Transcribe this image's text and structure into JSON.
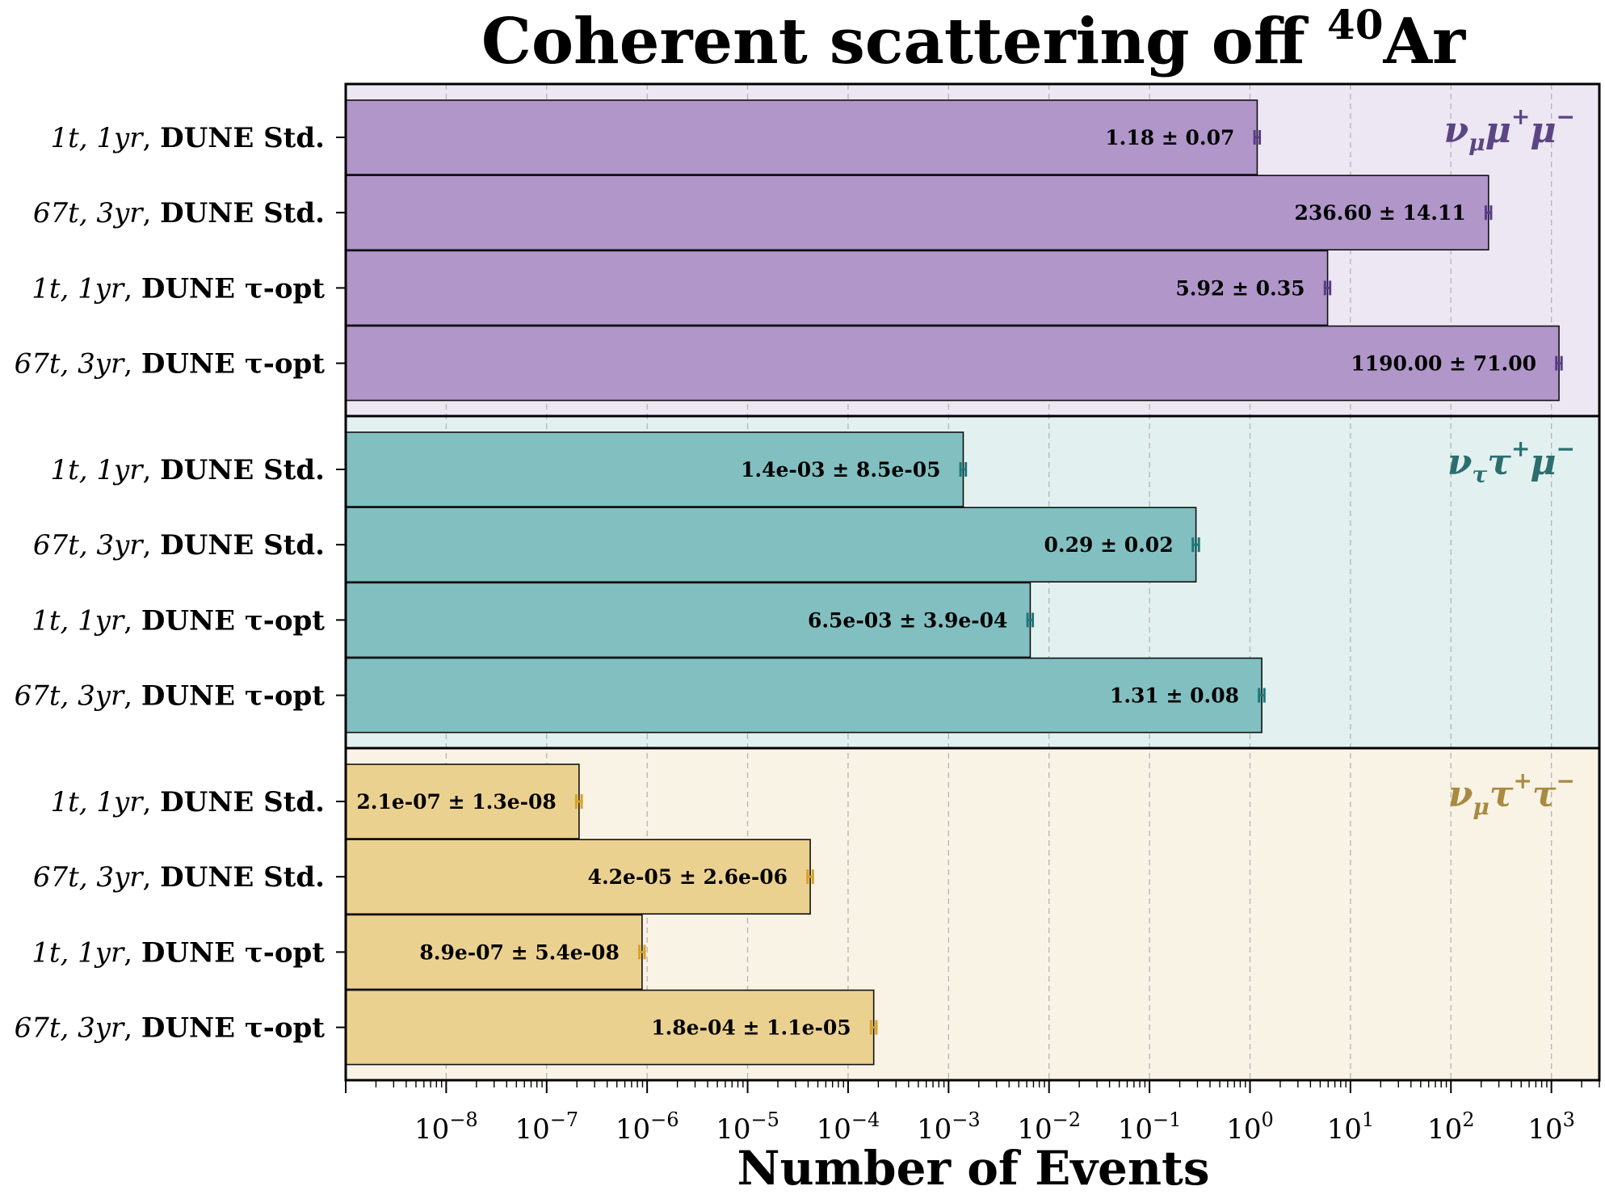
{
  "chart_data": {
    "type": "bar",
    "orientation": "horizontal",
    "title": "Coherent scattering off ⁴⁰Ar",
    "title_main": "Coherent scattering off ",
    "title_sup": "40",
    "title_tail": "Ar",
    "xlabel": "Number of Events",
    "xscale": "log",
    "xlim": [
      1e-09,
      3000
    ],
    "x_ticks": [
      1e-08,
      1e-07,
      1e-06,
      1e-05,
      0.0001,
      0.001,
      0.01,
      0.1,
      1,
      10,
      100,
      1000
    ],
    "x_tick_labels": [
      {
        "base": "10",
        "exp": "−8"
      },
      {
        "base": "10",
        "exp": "−7"
      },
      {
        "base": "10",
        "exp": "−6"
      },
      {
        "base": "10",
        "exp": "−5"
      },
      {
        "base": "10",
        "exp": "−4"
      },
      {
        "base": "10",
        "exp": "−3"
      },
      {
        "base": "10",
        "exp": "−2"
      },
      {
        "base": "10",
        "exp": "−1"
      },
      {
        "base": "10",
        "exp": "0"
      },
      {
        "base": "10",
        "exp": "1"
      },
      {
        "base": "10",
        "exp": "2"
      },
      {
        "base": "10",
        "exp": "3"
      }
    ],
    "grid": "x",
    "groups": [
      {
        "name": "νμμ+μ−",
        "label_parts": [
          {
            "t": "ν"
          },
          {
            "t": "μ",
            "sub": true
          },
          {
            "t": "μ"
          },
          {
            "t": "+",
            "sup": true
          },
          {
            "t": "μ"
          },
          {
            "t": "−",
            "sup": true
          }
        ],
        "bg_color": "#ede7f3",
        "bar_color": "#b096c9",
        "err_color": "#5b3a8c",
        "label_color": "#5b4585",
        "bars": [
          {
            "config": "1t, 1yr",
            "detector": "DUNE Std.",
            "value": 1.18,
            "error": 0.07,
            "label": "1.18 ± 0.07"
          },
          {
            "config": "67t, 3yr",
            "detector": "DUNE Std.",
            "value": 236.6,
            "error": 14.11,
            "label": "236.60 ± 14.11"
          },
          {
            "config": "1t, 1yr",
            "detector": "DUNE τ-opt",
            "value": 5.92,
            "error": 0.35,
            "label": "5.92 ± 0.35"
          },
          {
            "config": "67t, 3yr",
            "detector": "DUNE τ-opt",
            "value": 1190.0,
            "error": 71.0,
            "label": "1190.00 ± 71.00"
          }
        ]
      },
      {
        "name": "νττ+μ−",
        "label_parts": [
          {
            "t": "ν"
          },
          {
            "t": "τ",
            "sub": true
          },
          {
            "t": "τ"
          },
          {
            "t": "+",
            "sup": true
          },
          {
            "t": "μ"
          },
          {
            "t": "−",
            "sup": true
          }
        ],
        "bg_color": "#e2f1f0",
        "bar_color": "#82bfc0",
        "err_color": "#1a7a7a",
        "label_color": "#2c6e6e",
        "bars": [
          {
            "config": "1t, 1yr",
            "detector": "DUNE Std.",
            "value": 0.0014,
            "error": 8.5e-05,
            "label": "1.4e-03 ± 8.5e-05"
          },
          {
            "config": "67t, 3yr",
            "detector": "DUNE Std.",
            "value": 0.29,
            "error": 0.02,
            "label": "0.29 ± 0.02"
          },
          {
            "config": "1t, 1yr",
            "detector": "DUNE τ-opt",
            "value": 0.0065,
            "error": 0.00039,
            "label": "6.5e-03 ± 3.9e-04"
          },
          {
            "config": "67t, 3yr",
            "detector": "DUNE τ-opt",
            "value": 1.31,
            "error": 0.08,
            "label": "1.31 ± 0.08"
          }
        ]
      },
      {
        "name": "νμτ+τ−",
        "label_parts": [
          {
            "t": "ν"
          },
          {
            "t": "μ",
            "sub": true
          },
          {
            "t": "τ"
          },
          {
            "t": "+",
            "sup": true
          },
          {
            "t": "τ"
          },
          {
            "t": "−",
            "sup": true
          }
        ],
        "bg_color": "#f9f3e6",
        "bar_color": "#ebd190",
        "err_color": "#d9a22a",
        "label_color": "#a88a40",
        "bars": [
          {
            "config": "1t, 1yr",
            "detector": "DUNE Std.",
            "value": 2.1e-07,
            "error": 1.3e-08,
            "label": "2.1e-07 ± 1.3e-08"
          },
          {
            "config": "67t, 3yr",
            "detector": "DUNE Std.",
            "value": 4.2e-05,
            "error": 2.6e-06,
            "label": "4.2e-05 ± 2.6e-06"
          },
          {
            "config": "1t, 1yr",
            "detector": "DUNE τ-opt",
            "value": 8.9e-07,
            "error": 5.4e-08,
            "label": "8.9e-07 ± 5.4e-08"
          },
          {
            "config": "67t, 3yr",
            "detector": "DUNE τ-opt",
            "value": 0.00018,
            "error": 1.1e-05,
            "label": "1.8e-04 ± 1.1e-05"
          }
        ]
      }
    ]
  }
}
